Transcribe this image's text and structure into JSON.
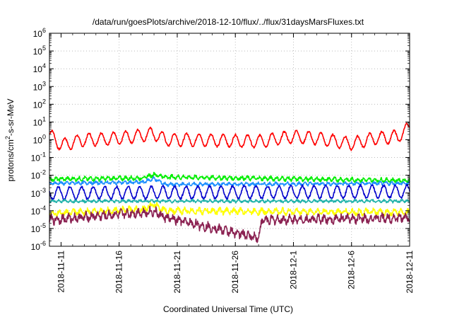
{
  "chart_data": {
    "type": "line",
    "title": "/data/run/goesPlots/archive/2018-12-10/flux/../flux/31daysMarsFluxes.txt",
    "xlabel": "Coordinated Universal Time (UTC)",
    "ylabel_parts": [
      "protons/cm",
      "2",
      "-s-sr-MeV"
    ],
    "y_scale": "log",
    "ylim": [
      1e-06,
      1000000.0
    ],
    "y_ticks": [
      {
        "base": "10",
        "exp": "-6"
      },
      {
        "base": "10",
        "exp": "-5"
      },
      {
        "base": "10",
        "exp": "-4"
      },
      {
        "base": "10",
        "exp": "-3"
      },
      {
        "base": "10",
        "exp": "-2"
      },
      {
        "base": "10",
        "exp": "-1"
      },
      {
        "base": "10",
        "exp": "0"
      },
      {
        "base": "10",
        "exp": "1"
      },
      {
        "base": "10",
        "exp": "2"
      },
      {
        "base": "10",
        "exp": "3"
      },
      {
        "base": "10",
        "exp": "4"
      },
      {
        "base": "10",
        "exp": "5"
      },
      {
        "base": "10",
        "exp": "6"
      }
    ],
    "xlim": [
      "2018-11-10",
      "2018-12-11"
    ],
    "x_ticks": [
      "2018-11-11",
      "2018-11-16",
      "2018-11-21",
      "2018-11-26",
      "2018-12-1",
      "2018-12-6",
      "2018-12-11"
    ],
    "grid": true,
    "series": [
      {
        "color": "#ff0000",
        "base": 1.2,
        "amp": 0.35,
        "period": 1.05,
        "noise": 0.05,
        "points": [
          [
            "2018-11-10",
            2.0
          ],
          [
            "2018-11-11",
            0.5
          ],
          [
            "2018-11-13",
            1.0
          ],
          [
            "2018-11-16",
            1.2
          ],
          [
            "2018-11-19",
            2.2
          ],
          [
            "2018-11-20",
            1.0
          ],
          [
            "2018-11-22",
            1.0
          ],
          [
            "2018-11-25",
            0.9
          ],
          [
            "2018-11-28",
            0.8
          ],
          [
            "2018-12-1",
            1.5
          ],
          [
            "2018-12-3",
            1.2
          ],
          [
            "2018-12-6",
            0.6
          ],
          [
            "2018-12-8",
            1.2
          ],
          [
            "2018-12-10",
            1.5
          ],
          [
            "2018-12-11",
            5.0
          ]
        ]
      },
      {
        "color": "#00ee00",
        "base": 0.006,
        "amp": 0.08,
        "period": 0.5,
        "noise": 0.08,
        "points": [
          [
            "2018-11-10",
            0.006
          ],
          [
            "2018-11-18",
            0.007
          ],
          [
            "2018-11-19",
            0.011
          ],
          [
            "2018-11-20",
            0.008
          ],
          [
            "2018-12-11",
            0.005
          ]
        ]
      },
      {
        "color": "#1e90ff",
        "base": 0.0035,
        "amp": 0.06,
        "period": 0.5,
        "noise": 0.07,
        "points": [
          [
            "2018-11-10",
            0.0035
          ],
          [
            "2018-11-18",
            0.004
          ],
          [
            "2018-11-19",
            0.0065
          ],
          [
            "2018-11-20",
            0.003
          ],
          [
            "2018-12-11",
            0.0035
          ]
        ]
      },
      {
        "color": "#0000cd",
        "base": 0.0012,
        "amp": 0.35,
        "period": 1.0,
        "noise": 0.06,
        "points": [
          [
            "2018-11-10",
            0.001
          ],
          [
            "2018-12-11",
            0.0012
          ]
        ]
      },
      {
        "color": "#20b2aa",
        "base": 0.00035,
        "amp": 0.05,
        "period": 0.5,
        "noise": 0.06,
        "points": [
          [
            "2018-11-10",
            0.00035
          ],
          [
            "2018-12-11",
            0.00035
          ]
        ]
      },
      {
        "color": "#ffff00",
        "base": 7e-05,
        "amp": 0.12,
        "period": 0.6,
        "noise": 0.12,
        "points": [
          [
            "2018-11-10",
            7e-05
          ],
          [
            "2018-11-18",
            0.00012
          ],
          [
            "2018-11-19",
            0.00022
          ],
          [
            "2018-11-20",
            0.0001
          ],
          [
            "2018-12-11",
            8e-05
          ]
        ]
      },
      {
        "color": "#8b2252",
        "base": 3.5e-05,
        "amp": 0.15,
        "period": 0.5,
        "noise": 0.18,
        "points": [
          [
            "2018-11-10",
            3e-05
          ],
          [
            "2018-11-18",
            8e-05
          ],
          [
            "2018-11-19",
            9e-05
          ],
          [
            "2018-11-20",
            4e-05
          ],
          [
            "2018-11-28",
            3e-06
          ],
          [
            "2018-11-28.3",
            3e-05
          ],
          [
            "2018-12-11",
            4e-05
          ]
        ]
      }
    ]
  }
}
